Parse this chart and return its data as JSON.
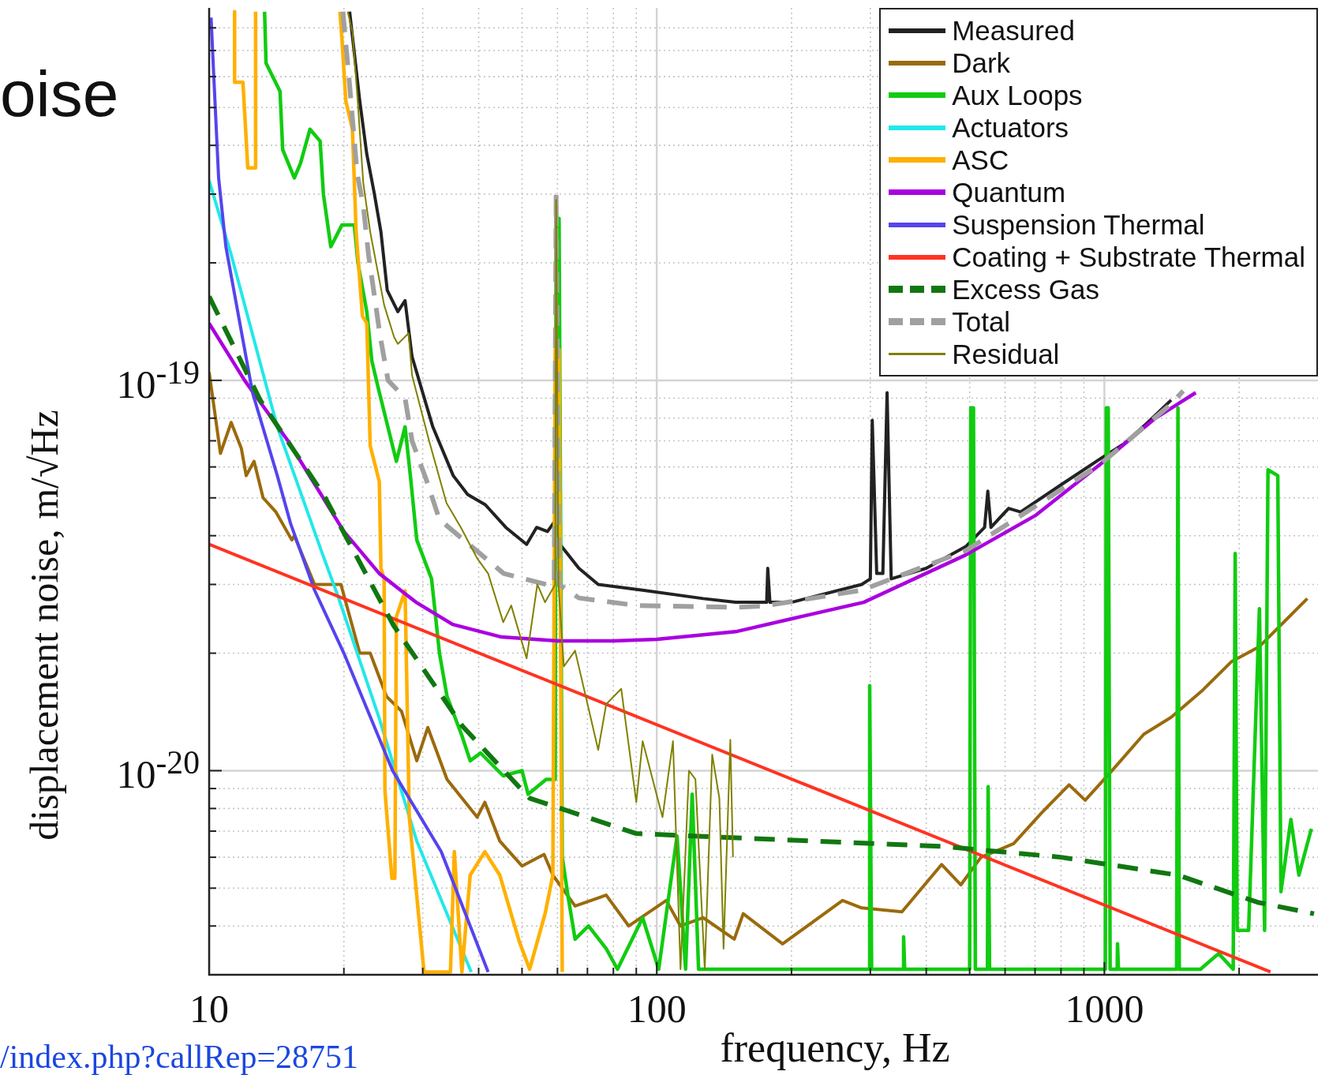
{
  "chart_data": {
    "type": "line",
    "title": "oise",
    "xlabel": "frequency, Hz",
    "ylabel": "displacement noise, m/√Hz",
    "annotations": [
      "/index.php?callRep=28751"
    ],
    "log": "xy",
    "grid": true,
    "legend": "top right",
    "marker": "none",
    "xlim": [
      10,
      3000
    ],
    "ylim": [
      3e-21,
      9e-19
    ],
    "xticks": [
      10,
      {
        "value": 20,
        "label": null
      },
      {
        "value": 30,
        "label": null
      },
      {
        "value": 40,
        "label": null
      },
      {
        "value": 50,
        "label": null
      },
      {
        "value": 60,
        "label": null
      },
      {
        "value": 70,
        "label": null
      },
      {
        "value": 80,
        "label": null
      },
      {
        "value": 90,
        "label": null
      },
      100,
      {
        "value": 200,
        "label": null
      },
      {
        "value": 300,
        "label": null
      },
      {
        "value": 400,
        "label": null
      },
      {
        "value": 500,
        "label": null
      },
      {
        "value": 600,
        "label": null
      },
      {
        "value": 700,
        "label": null
      },
      {
        "value": 800,
        "label": null
      },
      {
        "value": 900,
        "label": null
      },
      1000,
      {
        "value": 2000,
        "label": null
      }
    ],
    "yticks": [
      {
        "value": 4e-21,
        "label": null
      },
      {
        "value": 5e-21,
        "label": null
      },
      {
        "value": 6e-21,
        "label": null
      },
      {
        "value": 7e-21,
        "label": null
      },
      {
        "value": 8e-21,
        "label": null
      },
      {
        "value": 9e-21,
        "label": null
      },
      {
        "value": 1e-20,
        "label": "10$^{-20}$"
      },
      {
        "value": 2e-20,
        "label": null
      },
      {
        "value": 3e-20,
        "label": null
      },
      {
        "value": 4e-20,
        "label": null
      },
      {
        "value": 5e-20,
        "label": null
      },
      {
        "value": 6e-20,
        "label": null
      },
      {
        "value": 7e-20,
        "label": null
      },
      {
        "value": 8e-20,
        "label": null
      },
      {
        "value": 9e-20,
        "label": null
      },
      {
        "value": 1e-19,
        "label": "10$^{-19}$"
      },
      {
        "value": 2e-19,
        "label": null
      },
      {
        "value": 3e-19,
        "label": null
      },
      {
        "value": 4e-19,
        "label": null
      },
      {
        "value": 5e-19,
        "label": null
      },
      {
        "value": 6e-19,
        "label": null
      },
      {
        "value": 7e-19,
        "label": null
      },
      {
        "value": 8e-19,
        "label": null
      }
    ],
    "series": [
      {
        "name": "Measured",
        "color": "#222222",
        "x": [
          20.6,
          21.7,
          22.5,
          23.4,
          24.2,
          25.0,
          26.4,
          27.4,
          28.4,
          31.6,
          35.1,
          37.8,
          41.4,
          46,
          51.2,
          53.9,
          57,
          59.6,
          60.8,
          67,
          74,
          93,
          127,
          150,
          176,
          177,
          179,
          200,
          287,
          300,
          303,
          310,
          320,
          327,
          334,
          400,
          490,
          540,
          549,
          558,
          611,
          650,
          800,
          980,
          1110,
          1250,
          1410
        ],
        "values": [
          8.8e-19,
          5.2e-19,
          3.8e-19,
          3e-19,
          2.4e-19,
          1.7e-19,
          1.5e-19,
          1.6e-19,
          1.15e-19,
          7.6e-20,
          5.7e-20,
          5.1e-20,
          4.8e-20,
          4.2e-20,
          3.8e-20,
          4.2e-20,
          4.1e-20,
          4.4e-20,
          3.8e-20,
          3.3e-20,
          3e-20,
          2.9e-20,
          2.76e-20,
          2.7e-20,
          2.7e-20,
          3.3e-20,
          2.7e-20,
          2.7e-20,
          3e-20,
          3.1e-20,
          7.9e-20,
          3.2e-20,
          3.2e-20,
          9.3e-20,
          3.1e-20,
          3.3e-20,
          3.75e-20,
          4.2e-20,
          5.2e-20,
          4.2e-20,
          4.7e-20,
          4.6e-20,
          5.4e-20,
          6.3e-20,
          6.9e-20,
          7.8e-20,
          8.9e-20
        ]
      },
      {
        "name": "Dark",
        "color": "#9b6a0c",
        "x": [
          10,
          10.6,
          11.2,
          11.8,
          12.1,
          12.6,
          13.2,
          14.1,
          15.3,
          15.5,
          17.2,
          19.7,
          21.7,
          22.9,
          24.9,
          26.9,
          29.1,
          30.8,
          34,
          39.7,
          41.3,
          44.6,
          50,
          56,
          58.6,
          65.7,
          77.1,
          86.6,
          105,
          113,
          127,
          149,
          156,
          191,
          260,
          287,
          353,
          433,
          478,
          530,
          627,
          724,
          834,
          906,
          1040,
          1225,
          1410,
          1660,
          1920,
          2220,
          2560,
          2840
        ],
        "values": [
          1.05e-19,
          6.5e-20,
          7.8e-20,
          6.7e-20,
          5.7e-20,
          6.2e-20,
          5e-20,
          4.6e-20,
          3.9e-20,
          4e-20,
          3e-20,
          3e-20,
          2e-20,
          2e-20,
          1.55e-20,
          1.42e-20,
          1.06e-20,
          1.29e-20,
          9.5e-21,
          7.6e-21,
          8.3e-21,
          6.6e-21,
          5.7e-21,
          6.1e-21,
          5.4e-21,
          4.5e-21,
          4.8e-21,
          4e-21,
          4.65e-21,
          4e-21,
          4.2e-21,
          3.7e-21,
          4.3e-21,
          3.6e-21,
          4.65e-21,
          4.45e-21,
          4.35e-21,
          5.75e-21,
          5.1e-21,
          6e-21,
          6.5e-21,
          7.8e-21,
          9.2e-21,
          8.4e-21,
          1e-20,
          1.24e-20,
          1.37e-20,
          1.61e-20,
          1.9e-20,
          2.08e-20,
          2.45e-20,
          2.76e-20
        ]
      },
      {
        "name": "Aux Loops",
        "color": "#11cc11",
        "x": [
          13.3,
          13.4,
          14.4,
          14.6,
          15.5,
          16.0,
          16.8,
          17.7,
          18.0,
          18.7,
          19.8,
          21.1,
          21.5,
          22.5,
          23.1,
          23.9,
          26.2,
          27.4,
          28.2,
          29.1,
          31.4,
          32.7,
          34,
          36.7,
          38.3,
          40.4,
          45.4,
          50,
          51.6,
          56.6,
          59.3,
          59.6,
          60.5,
          61.5,
          63.3,
          65.7,
          70.4,
          77.1,
          81.7,
          93,
          101,
          111,
          116,
          120,
          124,
          298,
          299,
          302,
          355,
          356,
          358,
          500,
          503,
          510,
          515,
          548,
          550,
          554,
          1005,
          1010,
          1020,
          1030,
          1068,
          1070,
          1075,
          1450,
          1460,
          1470,
          1640,
          1800,
          1940,
          1960,
          1980,
          2100,
          2220,
          2280,
          2320,
          2440,
          2480,
          2610,
          2720,
          2900
        ],
        "values": [
          8.8e-19,
          6.5e-19,
          5.5e-19,
          3.9e-19,
          3.3e-19,
          3.6e-19,
          4.4e-19,
          4.1e-19,
          3e-19,
          2.2e-19,
          2.5e-19,
          2.5e-19,
          2e-19,
          1.5e-19,
          1.12e-19,
          9.5e-20,
          6.2e-20,
          7.6e-20,
          5.6e-20,
          3.9e-20,
          3.1e-20,
          2e-20,
          1.55e-20,
          1.23e-20,
          1.06e-20,
          1.11e-20,
          9.7e-21,
          1e-20,
          8.7e-21,
          9.5e-21,
          9.5e-21,
          2.6e-19,
          2.6e-19,
          6e-21,
          4.8e-21,
          3.7e-21,
          4e-21,
          3.5e-21,
          3.1e-21,
          4.2e-21,
          3.1e-21,
          6.8e-21,
          3.1e-21,
          8.7e-21,
          3.1e-21,
          3.1e-21,
          1.65e-20,
          3.1e-21,
          3.1e-21,
          3.75e-21,
          3.1e-21,
          3.1e-21,
          8.5e-20,
          8.5e-20,
          3.1e-21,
          3.1e-21,
          9.1e-21,
          3.1e-21,
          3.1e-21,
          8.5e-20,
          8.5e-20,
          3.1e-21,
          3.1e-21,
          3.6e-21,
          3.1e-21,
          3.1e-21,
          8.5e-20,
          3.1e-21,
          3.1e-21,
          3.4e-21,
          3.1e-21,
          3.6e-20,
          3.9e-21,
          3.9e-21,
          2.6e-20,
          3.9e-21,
          5.9e-20,
          5.7e-20,
          4.9e-21,
          7.5e-21,
          5.4e-21,
          7.1e-21
        ]
      },
      {
        "name": "Actuators",
        "color": "#22e8e8",
        "x": [
          10,
          11.2,
          14.2,
          17.9,
          19.4,
          24,
          29.1,
          38.5
        ],
        "values": [
          3.25e-19,
          2.1e-19,
          7.6e-20,
          3.6e-20,
          2.8e-20,
          1.36e-20,
          6.6e-21,
          3.05e-21
        ]
      },
      {
        "name": "ASC",
        "color": "#ffb000",
        "x": [
          11.4,
          11.4,
          11.9,
          12.2,
          12.7,
          12.7,
          16,
          19.6,
          19.8,
          20.2,
          20.9,
          21.3,
          22.0,
          22.5,
          22.9,
          24.0,
          24.2,
          24.6,
          24.7,
          25.6,
          26.0,
          26.2,
          27.4,
          28.0,
          30.2,
          34.6,
          35.3,
          36.7,
          38.3,
          41.3,
          44.6,
          49.3,
          52,
          56.3,
          58.6,
          59.3,
          60.5,
          61.5
        ],
        "values": [
          8.8e-19,
          5.8e-19,
          5.8e-19,
          3.5e-19,
          3.5e-19,
          8.8e-19,
          null,
          8.8e-19,
          7.5e-19,
          5.2e-19,
          4.4e-19,
          2.4e-19,
          1.46e-19,
          1.4e-19,
          6.8e-20,
          5.5e-20,
          3.3e-20,
          3.1e-20,
          8.9e-21,
          5.3e-21,
          5.3e-21,
          2.48e-20,
          2.89e-20,
          7.6e-21,
          3.05e-21,
          3.05e-21,
          6.2e-21,
          3.05e-21,
          5.4e-21,
          6.2e-21,
          5.4e-21,
          3.65e-21,
          3.1e-21,
          4.3e-21,
          5.4e-21,
          1.2e-19,
          1.2e-19,
          3.05e-21
        ]
      },
      {
        "name": "Quantum",
        "color": "#aa00e0",
        "x": [
          10,
          12,
          15,
          20,
          24,
          29,
          35,
          45,
          60,
          80,
          100,
          150,
          200,
          290,
          490,
          700,
          980,
          1300,
          1600
        ],
        "values": [
          1.4e-19,
          1e-19,
          7e-20,
          4.1e-20,
          3.2e-20,
          2.7e-20,
          2.37e-20,
          2.2e-20,
          2.15e-20,
          2.15e-20,
          2.17e-20,
          2.27e-20,
          2.45e-20,
          2.7e-20,
          3.57e-20,
          4.5e-20,
          6.1e-20,
          8e-20,
          9.3e-20
        ]
      },
      {
        "name": "Suspension Thermal",
        "color": "#5544ee",
        "x": [
          10.1,
          10.25,
          10.5,
          10.9,
          12.5,
          14.2,
          15.2,
          17.2,
          20,
          25.7,
          33,
          42
        ],
        "values": [
          8.5e-19,
          5.9e-19,
          3.3e-19,
          2.2e-19,
          9.3e-20,
          5.7e-20,
          4.3e-20,
          2.9e-20,
          2e-20,
          1e-20,
          6.2e-21,
          3.05e-21
        ]
      },
      {
        "name": "Coating + Substrate Thermal",
        "color": "#ff3322",
        "x": [
          10,
          2350
        ],
        "values": [
          3.8e-20,
          3.05e-21
        ]
      },
      {
        "name": "Excess Gas",
        "color": "#117711",
        "line_style": "dashed",
        "x": [
          10,
          13,
          18,
          25.8,
          36.8,
          52,
          90,
          165,
          433,
          800,
          1460,
          2200,
          2940
        ],
        "values": [
          1.64e-19,
          8.9e-20,
          5.1e-20,
          2.36e-20,
          1.3e-20,
          8.5e-21,
          6.9e-21,
          6.7e-21,
          6.4e-21,
          6e-21,
          5.4e-21,
          4.6e-21,
          4.3e-21
        ]
      },
      {
        "name": "Total",
        "color": "#a0a0a0",
        "line_style": "dashed",
        "x": [
          19.9,
          20.6,
          21.4,
          22.1,
          22.7,
          24.1,
          25.1,
          27.4,
          28.4,
          30.5,
          32.7,
          45.5,
          56.6,
          59,
          59.6,
          60.5,
          67,
          90,
          149,
          173,
          287,
          490,
          650,
          980,
          1410,
          1500
        ],
        "values": [
          8.8e-19,
          5.7e-19,
          3.4e-19,
          2.8e-19,
          2.1e-19,
          1.3e-19,
          1e-19,
          9e-20,
          7e-20,
          5.6e-20,
          4.4e-20,
          3.2e-20,
          3e-20,
          3e-20,
          3e-19,
          3e-20,
          2.77e-20,
          2.65e-20,
          2.62e-20,
          2.64e-20,
          2.9e-20,
          3.66e-20,
          4.5e-20,
          6.1e-20,
          8.7e-20,
          9.4e-20
        ]
      },
      {
        "name": "Residual",
        "color": "#808000",
        "x": [
          20.4,
          20.9,
          21.5,
          22.1,
          22.9,
          24.6,
          25.9,
          26.4,
          27.9,
          28.4,
          31,
          33.9,
          36.5,
          39.7,
          42,
          45.4,
          47.3,
          51.2,
          54.1,
          56.3,
          59.3,
          59.6,
          60.3,
          62,
          65.7,
          74,
          77.1,
          83.3,
          90,
          93,
          103,
          108.7,
          113,
          118,
          122,
          128,
          133,
          138,
          141,
          146,
          148
        ],
        "values": [
          8.8e-19,
          7.8e-19,
          5.1e-19,
          3.2e-19,
          2.4e-19,
          1.56e-19,
          1.29e-19,
          1.24e-19,
          1.32e-19,
          1.03e-19,
          7e-20,
          4.85e-20,
          4.2e-20,
          3.5e-20,
          3.2e-20,
          2.4e-20,
          2.65e-20,
          1.94e-20,
          3e-20,
          2.7e-20,
          3e-20,
          2.9e-19,
          3e-20,
          1.85e-20,
          2.03e-20,
          1.13e-20,
          1.48e-20,
          1.62e-20,
          8.3e-21,
          1.19e-20,
          7.6e-21,
          1.19e-20,
          3.1e-21,
          1e-20,
          9.5e-21,
          3.1e-21,
          1.1e-20,
          8.5e-21,
          3.5e-21,
          1.2e-20,
          6e-21
        ]
      }
    ]
  }
}
